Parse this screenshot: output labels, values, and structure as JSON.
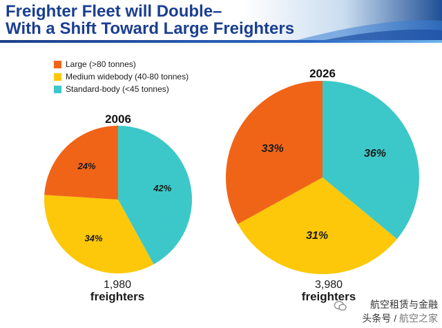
{
  "title_line1": "Freighter Fleet will Double–",
  "title_line2": "With a Shift Toward Large Freighters",
  "legend": [
    {
      "label": "Large (>80 tonnes)",
      "color": "#f06418"
    },
    {
      "label": "Medium widebody (40-80 tonnes)",
      "color": "#fcc809"
    },
    {
      "label": "Standard-body (<45 tonnes)",
      "color": "#3cc8c8"
    }
  ],
  "watermark": {
    "line1": "航空租赁与金融",
    "line2_a": "头条号 / ",
    "line2_b": "航空之家"
  },
  "chart_data": [
    {
      "type": "pie",
      "title": "2006",
      "categories": [
        "Standard-body (<45 tonnes)",
        "Medium widebody (40-80 tonnes)",
        "Large (>80 tonnes)"
      ],
      "values": [
        42,
        34,
        24
      ],
      "labels": [
        "42%",
        "34%",
        "24%"
      ],
      "total_number": "1,980",
      "total_unit": "freighters"
    },
    {
      "type": "pie",
      "title": "2026",
      "categories": [
        "Standard-body (<45 tonnes)",
        "Medium widebody (40-80 tonnes)",
        "Large (>80 tonnes)"
      ],
      "values": [
        36,
        31,
        33
      ],
      "labels": [
        "36%",
        "31%",
        "33%"
      ],
      "total_number": "3,980",
      "total_unit": "freighters"
    }
  ]
}
